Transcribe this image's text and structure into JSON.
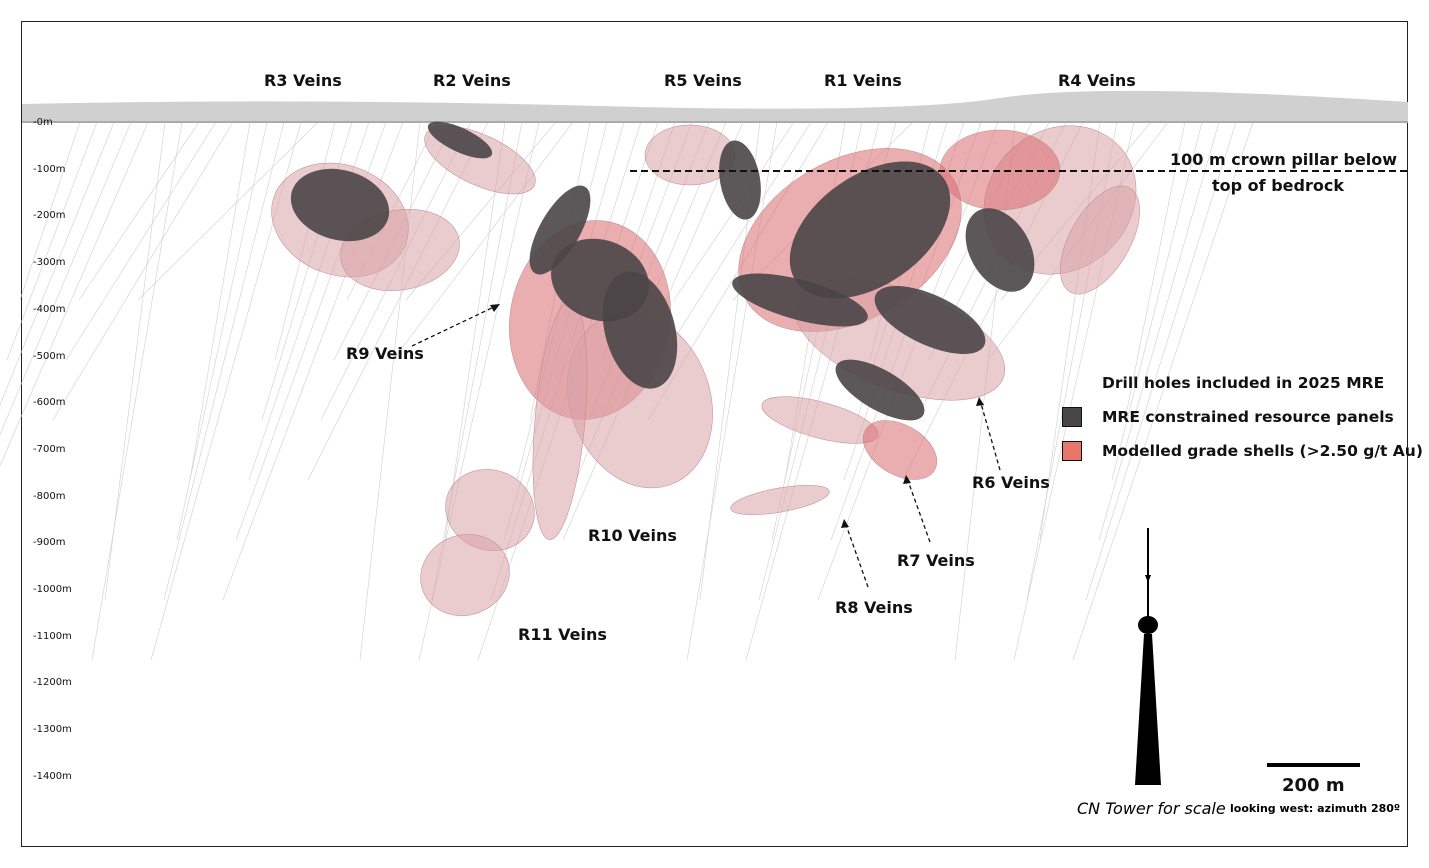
{
  "vein_labels": [
    {
      "id": "r3",
      "text": "R3 Veins"
    },
    {
      "id": "r2",
      "text": "R2 Veins"
    },
    {
      "id": "r5",
      "text": "R5 Veins"
    },
    {
      "id": "r1",
      "text": "R1 Veins"
    },
    {
      "id": "r4",
      "text": "R4 Veins"
    },
    {
      "id": "r9",
      "text": "R9 Veins"
    },
    {
      "id": "r10",
      "text": "R10 Veins"
    },
    {
      "id": "r11",
      "text": "R11 Veins"
    },
    {
      "id": "r8",
      "text": "R8 Veins"
    },
    {
      "id": "r7",
      "text": "R7 Veins"
    },
    {
      "id": "r6",
      "text": "R6 Veins"
    }
  ],
  "depth_labels": [
    "-0m",
    "-100m",
    "-200m",
    "-300m",
    "-400m",
    "-500m",
    "-600m",
    "-700m",
    "-800m",
    "-900m",
    "-1000m",
    "-1100m",
    "-1200m",
    "-1300m",
    "-1400m"
  ],
  "crown_pillar": {
    "line1": "100 m crown pillar below",
    "line2": "top of bedrock"
  },
  "legend": [
    {
      "label": "Drill holes included in 2025 MRE",
      "icon": "drill-hole-line"
    },
    {
      "label": "MRE constrained resource panels",
      "color": "#4a4547"
    },
    {
      "label": "Modelled grade shells (>2.50 g/t Au)",
      "color": "#e8776a"
    }
  ],
  "scale_bar": {
    "label": "200 m"
  },
  "cn_tower": {
    "caption": "CN Tower for scale"
  },
  "view_note": "looking west: azimuth 280º",
  "colors": {
    "shell": "#d9a3a6",
    "shell_strong": "#d96b6f",
    "panel": "#4a4547",
    "surface": "#c8c8c8"
  }
}
